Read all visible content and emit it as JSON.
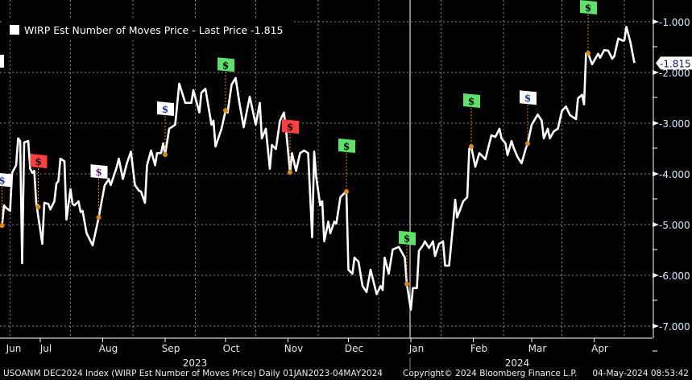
{
  "chart_data": {
    "type": "line",
    "title": "WIRP Est Number of Moves Price",
    "legend": {
      "label": "WIRP Est Number of Moves Price - Last Price -1.815",
      "placement": "top-left"
    },
    "x_unit": "days since 2023-06-01",
    "xlim": [
      -10,
      330
    ],
    "ylim": [
      -7.2,
      -0.8
    ],
    "y_ticks": [
      "-1.000",
      "-2.000",
      "-3.000",
      "-4.000",
      "-5.000",
      "-6.000",
      "-7.000"
    ],
    "y_tick_values": [
      -1,
      -2,
      -3,
      -4,
      -5,
      -6,
      -7
    ],
    "last_price_label": "-1.815",
    "last_price": -1.815,
    "months": [
      {
        "label": "Jun",
        "day": 0
      },
      {
        "label": "Jul",
        "day": 30
      },
      {
        "label": "Aug",
        "day": 61
      },
      {
        "label": "Sep",
        "day": 92
      },
      {
        "label": "Oct",
        "day": 122
      },
      {
        "label": "Nov",
        "day": 153
      },
      {
        "label": "Dec",
        "day": 183
      },
      {
        "label": "Jan",
        "day": 214
      },
      {
        "label": "Feb",
        "day": 245
      },
      {
        "label": "Mar",
        "day": 274
      },
      {
        "label": "Apr",
        "day": 305
      }
    ],
    "years": [
      {
        "label": "2023",
        "day": 92
      },
      {
        "label": "2024",
        "day": 252
      }
    ],
    "year_divider_day": 214,
    "grid": true,
    "series": [
      {
        "name": "Last Price",
        "color": "#ffffff",
        "points": [
          [
            11,
            -5.02
          ],
          [
            12,
            -4.62
          ],
          [
            13,
            -4.67
          ],
          [
            15,
            -4.73
          ],
          [
            16,
            -3.98
          ],
          [
            18,
            -3.83
          ],
          [
            19,
            -3.3
          ],
          [
            20,
            -3.35
          ],
          [
            21,
            -5.76
          ],
          [
            22,
            -3.38
          ],
          [
            24,
            -3.35
          ],
          [
            25,
            -3.9
          ],
          [
            26,
            -3.98
          ],
          [
            27,
            -3.94
          ],
          [
            28,
            -4.57
          ],
          [
            31,
            -5.38
          ],
          [
            32,
            -4.57
          ],
          [
            34,
            -4.59
          ],
          [
            35,
            -4.7
          ],
          [
            37,
            -4.54
          ],
          [
            38,
            -4.19
          ],
          [
            39,
            -4.14
          ],
          [
            40,
            -3.7
          ],
          [
            42,
            -3.75
          ],
          [
            43,
            -4.9
          ],
          [
            45,
            -4.3
          ],
          [
            46,
            -4.59
          ],
          [
            47,
            -4.62
          ],
          [
            49,
            -4.54
          ],
          [
            50,
            -4.75
          ],
          [
            51,
            -4.73
          ],
          [
            53,
            -5.17
          ],
          [
            56,
            -5.41
          ],
          [
            59,
            -4.86
          ],
          [
            62,
            -4.22
          ],
          [
            63,
            -4.17
          ],
          [
            64,
            -4.1
          ],
          [
            65,
            -4.22
          ],
          [
            68,
            -3.86
          ],
          [
            69,
            -3.7
          ],
          [
            71,
            -4.1
          ],
          [
            73,
            -3.79
          ],
          [
            75,
            -3.56
          ],
          [
            77,
            -4.22
          ],
          [
            79,
            -4.33
          ],
          [
            80,
            -4.35
          ],
          [
            82,
            -4.57
          ],
          [
            83,
            -3.83
          ],
          [
            85,
            -3.54
          ],
          [
            87,
            -3.83
          ],
          [
            88,
            -3.59
          ],
          [
            90,
            -3.59
          ],
          [
            91,
            -3.4
          ],
          [
            92,
            -3.62
          ],
          [
            94,
            -3.11
          ],
          [
            97,
            -3.03
          ],
          [
            99,
            -2.22
          ],
          [
            102,
            -2.6
          ],
          [
            105,
            -2.6
          ],
          [
            106,
            -2.35
          ],
          [
            109,
            -2.79
          ],
          [
            110,
            -2.4
          ],
          [
            112,
            -2.32
          ],
          [
            115,
            -3.03
          ],
          [
            116,
            -2.95
          ],
          [
            117,
            -3.46
          ],
          [
            120,
            -3.11
          ],
          [
            122,
            -2.75
          ],
          [
            123,
            -2.79
          ],
          [
            125,
            -2.24
          ],
          [
            127,
            -2.11
          ],
          [
            129,
            -2.63
          ],
          [
            131,
            -3.08
          ],
          [
            134,
            -2.48
          ],
          [
            137,
            -3.03
          ],
          [
            139,
            -2.6
          ],
          [
            140,
            -3.3
          ],
          [
            142,
            -3.11
          ],
          [
            144,
            -3.9
          ],
          [
            145,
            -3.43
          ],
          [
            147,
            -3.51
          ],
          [
            149,
            -2.95
          ],
          [
            151,
            -2.79
          ],
          [
            152,
            -3.11
          ],
          [
            154,
            -3.97
          ],
          [
            155,
            -3.59
          ],
          [
            157,
            -3.94
          ],
          [
            159,
            -3.59
          ],
          [
            161,
            -3.54
          ],
          [
            163,
            -3.59
          ],
          [
            165,
            -5.25
          ],
          [
            166,
            -3.56
          ],
          [
            167,
            -4.06
          ],
          [
            169,
            -4.62
          ],
          [
            170,
            -4.54
          ],
          [
            171,
            -5.33
          ],
          [
            173,
            -4.94
          ],
          [
            174,
            -5.17
          ],
          [
            176,
            -4.94
          ],
          [
            177,
            -4.98
          ],
          [
            179,
            -4.46
          ],
          [
            181,
            -4.38
          ],
          [
            182,
            -4.35
          ],
          [
            183,
            -5.89
          ],
          [
            185,
            -5.97
          ],
          [
            186,
            -5.65
          ],
          [
            188,
            -5.73
          ],
          [
            190,
            -6.21
          ],
          [
            192,
            -6.33
          ],
          [
            194,
            -5.89
          ],
          [
            197,
            -6.37
          ],
          [
            199,
            -6.21
          ],
          [
            200,
            -6.29
          ],
          [
            201,
            -5.65
          ],
          [
            203,
            -5.97
          ],
          [
            205,
            -5.49
          ],
          [
            208,
            -5.44
          ],
          [
            211,
            -5.65
          ],
          [
            212,
            -6.17
          ],
          [
            214,
            -6.68
          ],
          [
            215,
            -6.25
          ],
          [
            217,
            -6.25
          ],
          [
            218,
            -5.52
          ],
          [
            220,
            -5.41
          ],
          [
            221,
            -5.33
          ],
          [
            223,
            -5.46
          ],
          [
            225,
            -5.33
          ],
          [
            226,
            -5.62
          ],
          [
            228,
            -5.38
          ],
          [
            230,
            -5.33
          ],
          [
            231,
            -5.81
          ],
          [
            233,
            -5.81
          ],
          [
            235,
            -4.98
          ],
          [
            236,
            -4.51
          ],
          [
            237,
            -4.86
          ],
          [
            240,
            -4.54
          ],
          [
            242,
            -4.46
          ],
          [
            243,
            -3.51
          ],
          [
            244,
            -3.46
          ],
          [
            246,
            -3.86
          ],
          [
            248,
            -3.59
          ],
          [
            249,
            -3.63
          ],
          [
            251,
            -3.71
          ],
          [
            254,
            -3.24
          ],
          [
            256,
            -3.27
          ],
          [
            258,
            -3.11
          ],
          [
            259,
            -3.3
          ],
          [
            261,
            -3.4
          ],
          [
            262,
            -3.63
          ],
          [
            264,
            -3.35
          ],
          [
            265,
            -3.48
          ],
          [
            267,
            -3.67
          ],
          [
            269,
            -3.79
          ],
          [
            271,
            -3.51
          ],
          [
            272,
            -3.4
          ],
          [
            274,
            -3.03
          ],
          [
            277,
            -2.83
          ],
          [
            279,
            -2.95
          ],
          [
            280,
            -3.3
          ],
          [
            282,
            -3.11
          ],
          [
            283,
            -3.3
          ],
          [
            285,
            -3.16
          ],
          [
            287,
            -3.11
          ],
          [
            289,
            -2.76
          ],
          [
            291,
            -2.67
          ],
          [
            293,
            -2.84
          ],
          [
            296,
            -2.92
          ],
          [
            297,
            -2.51
          ],
          [
            299,
            -2.44
          ],
          [
            300,
            -2.63
          ],
          [
            301,
            -1.62
          ],
          [
            302,
            -1.62
          ],
          [
            304,
            -1.84
          ],
          [
            307,
            -1.63
          ],
          [
            308,
            -1.71
          ],
          [
            310,
            -1.56
          ],
          [
            312,
            -1.57
          ],
          [
            314,
            -1.73
          ],
          [
            315,
            -1.68
          ],
          [
            317,
            -1.33
          ],
          [
            319,
            -1.37
          ],
          [
            320,
            -1.37
          ],
          [
            321,
            -1.1
          ],
          [
            323,
            -1.4
          ],
          [
            325,
            -1.815
          ]
        ]
      }
    ],
    "event_markers": [
      {
        "day": 11,
        "value": -5.02,
        "flag_color": "#ffffff",
        "symbol": "$",
        "symbol_color": "#1a3a8a"
      },
      {
        "day": 29,
        "value": -4.65,
        "flag_color": "#ff4040",
        "symbol": "$",
        "symbol_color": "#000000"
      },
      {
        "day": 59,
        "value": -4.86,
        "flag_color": "#ffffff",
        "symbol": "$",
        "symbol_color": "#5a1a6a"
      },
      {
        "day": 92,
        "value": -3.62,
        "flag_color": "#ffffff",
        "symbol": "$",
        "symbol_color": "#1a3a8a"
      },
      {
        "day": 122,
        "value": -2.75,
        "flag_color": "#5fe06a",
        "symbol": "$",
        "symbol_color": "#000000"
      },
      {
        "day": 154,
        "value": -3.97,
        "flag_color": "#ff4040",
        "symbol": "$",
        "symbol_color": "#000000"
      },
      {
        "day": 182,
        "value": -4.35,
        "flag_color": "#5fe06a",
        "symbol": "$",
        "symbol_color": "#000000"
      },
      {
        "day": 212,
        "value": -6.17,
        "flag_color": "#5fe06a",
        "symbol": "$",
        "symbol_color": "#000000"
      },
      {
        "day": 244,
        "value": -3.46,
        "flag_color": "#5fe06a",
        "symbol": "$",
        "symbol_color": "#000000"
      },
      {
        "day": 272,
        "value": -3.4,
        "flag_color": "#ffffff",
        "symbol": "$",
        "symbol_color": "#1a3a8a"
      },
      {
        "day": 302,
        "value": -1.62,
        "flag_color": "#5fe06a",
        "symbol": "$",
        "symbol_color": "#000000"
      }
    ],
    "marker_dot_color": "#d98a1a"
  },
  "footer": {
    "ticker": "USOANM DEC2024 Index (WIRP Est Number of Moves Price)  Daily 01JAN2023-04MAY2024",
    "copyright": "Copyright© 2024 Bloomberg Finance L.P.",
    "timestamp": "04-May-2024 08:53:42"
  }
}
